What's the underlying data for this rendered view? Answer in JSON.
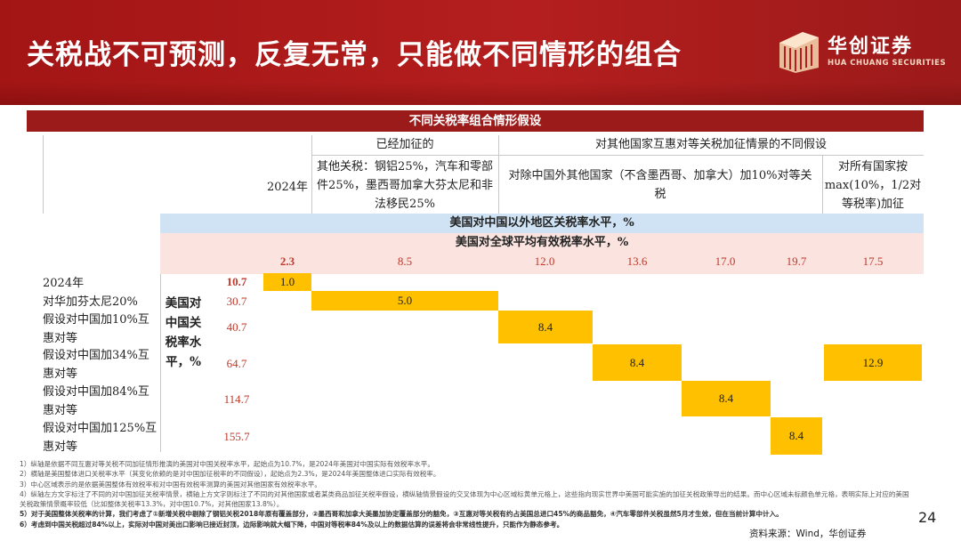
{
  "title": "关税战不可预测，反复无常，只能做不同情形的组合",
  "logo": {
    "cn": "华创证券",
    "en": "HUA CHUANG SECURITIES"
  },
  "colors": {
    "banner": "#a31515",
    "header": "#9b1b1b",
    "highlight": "#ffc000",
    "value_text": "#c0392b",
    "blue_band": "#cfe3f5",
    "pink_band": "#fbe3df"
  },
  "table": {
    "header": "不同关税率组合情形假设",
    "groups": {
      "imposed": "已经加征的",
      "other_countries": "对其他国家互惠对等关税加征情景的不同假设"
    },
    "col_heads": {
      "year": "2024年",
      "imposed_detail": "其他关税：钢铝25%，汽车和零部件25%，墨西哥加拿大芬太尼和非法移民25%",
      "except_mx_ca": "对除中国外其他国家（不含墨西哥、加拿大）加10%对等关税",
      "all_max": "对所有国家按max(10%，1/2对等税率)加征"
    },
    "band_blue": "美国对中国以外地区关税率水平，%",
    "band_pink": "美国对全球平均有效税率水平，%",
    "global_rates": [
      "2.3",
      "8.5",
      "12.0",
      "13.6",
      "17.0",
      "19.7",
      "17.5"
    ],
    "side_label": "美国对中国关税率水平，%",
    "rows": [
      {
        "label": "2024年",
        "cn_rate": "10.7"
      },
      {
        "label": "对华加芬太尼20%",
        "cn_rate": "30.7"
      },
      {
        "label": "假设对中国加10%互惠对等",
        "cn_rate": "40.7"
      },
      {
        "label": "假设对中国加34%互惠对等",
        "cn_rate": "64.7"
      },
      {
        "label": "假设对中国加84%互惠对等",
        "cn_rate": "114.7"
      },
      {
        "label": "假设对中国加125%互惠对等",
        "cn_rate": "155.7"
      }
    ],
    "matrix_values": [
      "1.0",
      "5.0",
      "8.4",
      "8.4",
      "12.9",
      "8.4",
      "8.4"
    ]
  },
  "notes": [
    "1）纵轴是依据不同互惠对等关税不同加征情形推演的美国对中国关税率水平，起始点为10.7%，是2024年美国对中国实际有效税率水平。",
    "2）横轴是美国整体进口关税率水平（其变化依赖的是对中国加征税率的不同假设），起始点为2.3%，是2024年美国整体进口实际有效税率。",
    "3）中心区域表示的是依据美国整体有效税率和对中国有效税率测算的美国对其他国家有效税率水平。",
    "4）纵轴左方文字标注了不同的对中国加征关税率情景，横轴上方文字则标注了不同的对其他国家或者某类商品加征关税率假设，横纵轴情景假设的交叉体现为中心区域标黄单元格上，这些指向现实世界中美国可能实施的加征关税政策导出的结果。而中心区域未标颜色单元格，表明实际上对应的美国关税政策情景概率较低（比如整体关税率13.3%，对中国10.7%，对其他国家13.8%）。",
    "5）对于美国整体关税率的计算，我们考虑了①新增关税中剔除了钢铝关税2018年原有覆盖部分，②墨西哥和加拿大美墨加协定覆盖部分的豁免，③互惠对等关税有约占美国总进口45%的商品豁免，④汽车零部件关税虽然5月才生效，但在当前计算中计入。",
    "6）考虑到中国关税超过84%以上，实际对中国对美出口影响已接近封顶，边际影响就大幅下降，中国对等税率84%及以上的数据估算的误差将会非常线性提升，只能作为静态参考。"
  ],
  "page_number": "24",
  "source": "资料来源：Wind，华创证券"
}
